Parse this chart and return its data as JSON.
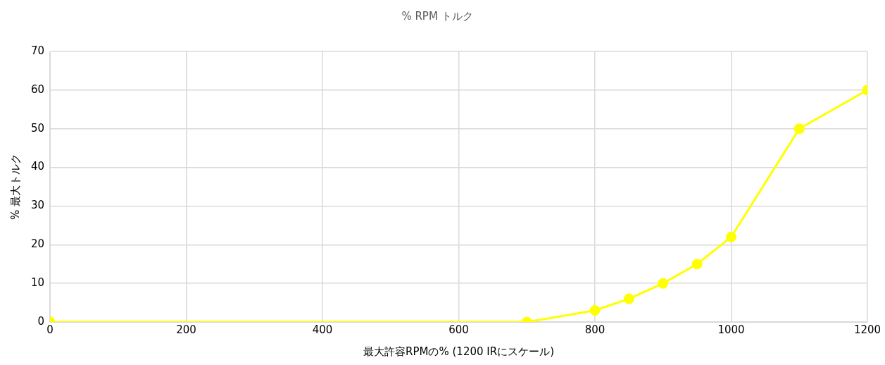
{
  "chart_data": {
    "type": "line",
    "title": "% RPM トルク",
    "xlabel": "最大許容RPMの% (1200 IRにスケール)",
    "ylabel": "% 最大トルク",
    "series": [
      {
        "color": "#ffff00",
        "x": [
          0,
          700,
          800,
          850,
          900,
          950,
          1000,
          1100,
          1200
        ],
        "values": [
          0,
          0,
          3,
          6,
          10,
          15,
          22,
          50,
          60
        ]
      }
    ],
    "xlim": [
      0,
      1200
    ],
    "xticks": [
      0,
      200,
      400,
      600,
      800,
      1000,
      1200
    ],
    "ylim": [
      0,
      70
    ],
    "yticks": [
      0,
      10,
      20,
      30,
      40,
      50,
      60,
      70
    ],
    "grid": true,
    "legend": false,
    "marker": "circle",
    "line_style": "solid"
  }
}
